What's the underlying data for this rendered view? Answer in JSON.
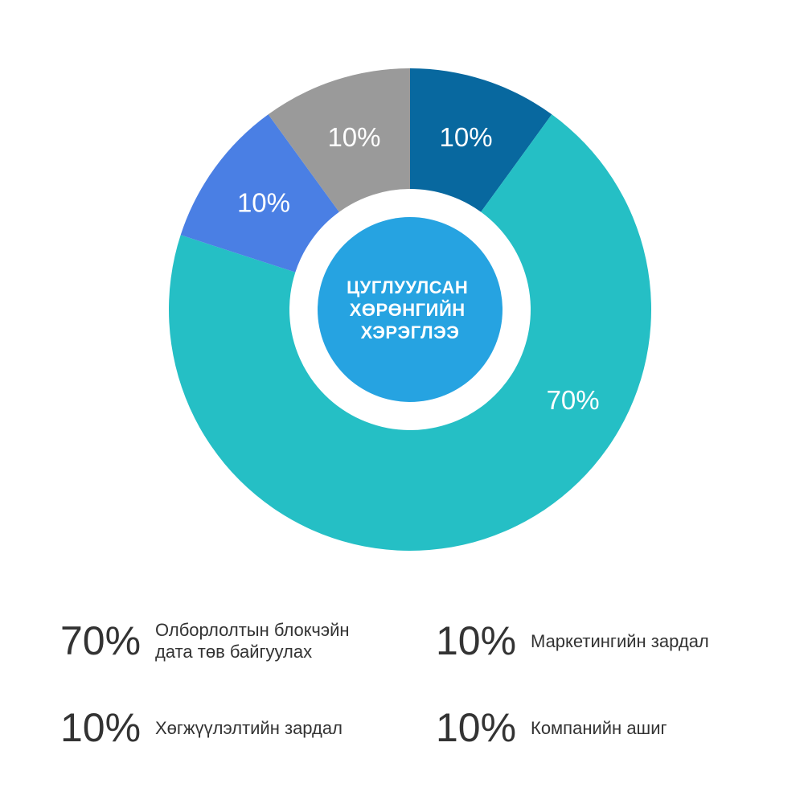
{
  "chart_data": {
    "type": "pie",
    "title": "",
    "center_label": [
      "ЦУГЛУУЛСАН",
      "ХӨРӨНГИЙН",
      "ХЭРЭГЛЭЭ"
    ],
    "slices": [
      {
        "value": 10,
        "label": "10%",
        "color": "#08689f"
      },
      {
        "value": 70,
        "label": "70%",
        "color": "#25bfc5"
      },
      {
        "value": 10,
        "label": "10%",
        "color": "#4a7fe4"
      },
      {
        "value": 10,
        "label": "10%",
        "color": "#9a9a9a"
      }
    ],
    "colors": {
      "center_disc": "#26a3e1",
      "ring_gap": "#ffffff"
    }
  },
  "legend": [
    {
      "pct": "70%",
      "text": "Олборлолтын блокчэйн\nдата төв байгуулах"
    },
    {
      "pct": "10%",
      "text": "Маркетингийн зардал"
    },
    {
      "pct": "10%",
      "text": "Хөгжүүлэлтийн зардал"
    },
    {
      "pct": "10%",
      "text": "Компанийн ашиг"
    }
  ]
}
